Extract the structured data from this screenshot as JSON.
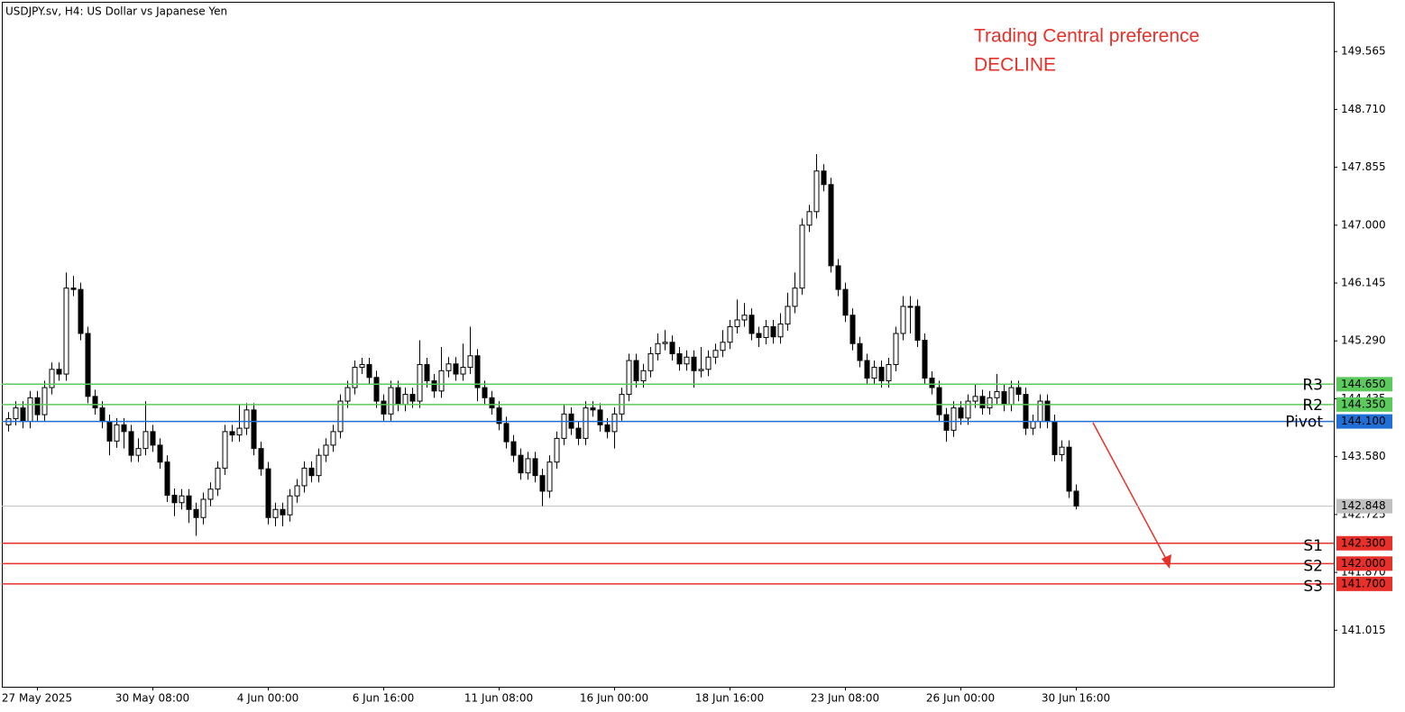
{
  "chart_data": {
    "type": "candlestick",
    "title": "USDJPY.sv, H4:  US Dollar vs Japanese Yen",
    "annotations": [
      "Trading Central preference",
      "DECLINE"
    ],
    "up_color": "#ffffff",
    "down_color": "#000000",
    "ylim": [
      140.18,
      150.3
    ],
    "yticks": [
      {
        "value": 141.015,
        "label": "141.015"
      },
      {
        "value": 141.87,
        "label": "141.870"
      },
      {
        "value": 142.725,
        "label": "142.725"
      },
      {
        "value": 143.58,
        "label": "143.580"
      },
      {
        "value": 144.435,
        "label": "144.435"
      },
      {
        "value": 145.29,
        "label": "145.290"
      },
      {
        "value": 146.145,
        "label": "146.145"
      },
      {
        "value": 147,
        "label": "147.000"
      },
      {
        "value": 147.855,
        "label": "147.855"
      },
      {
        "value": 148.71,
        "label": "148.710"
      },
      {
        "value": 149.565,
        "label": "149.565"
      }
    ],
    "current_price": 142.848,
    "levels": [
      {
        "name": "R3",
        "value": 144.65,
        "label": "144.650",
        "color": "#5cc95c"
      },
      {
        "name": "R2",
        "value": 144.35,
        "label": "144.350",
        "color": "#5cc95c"
      },
      {
        "name": "Pivot",
        "value": 144.1,
        "label": "144.100",
        "color": "#1f6fd6"
      },
      {
        "name": "S1",
        "value": 142.3,
        "label": "142.300",
        "color": "#e8302a"
      },
      {
        "name": "S2",
        "value": 142,
        "label": "142.000",
        "color": "#e8302a"
      },
      {
        "name": "S3",
        "value": 141.7,
        "label": "141.700",
        "color": "#e8302a"
      }
    ],
    "categories": [
      null,
      null,
      null,
      null,
      "27 May 2025",
      null,
      null,
      null,
      null,
      null,
      null,
      null,
      null,
      null,
      null,
      null,
      null,
      null,
      null,
      null,
      "30 May 08:00",
      null,
      null,
      null,
      null,
      null,
      null,
      null,
      null,
      null,
      null,
      null,
      null,
      null,
      null,
      null,
      "4 Jun 00:00",
      null,
      null,
      null,
      null,
      null,
      null,
      null,
      null,
      null,
      null,
      null,
      null,
      null,
      null,
      null,
      "6 Jun 16:00",
      null,
      null,
      null,
      null,
      null,
      null,
      null,
      null,
      null,
      null,
      null,
      null,
      null,
      null,
      null,
      "11 Jun 08:00",
      null,
      null,
      null,
      null,
      null,
      null,
      null,
      null,
      null,
      null,
      null,
      null,
      null,
      null,
      null,
      "16 Jun 00:00",
      null,
      null,
      null,
      null,
      null,
      null,
      null,
      null,
      null,
      null,
      null,
      null,
      null,
      null,
      null,
      "18 Jun 16:00",
      null,
      null,
      null,
      null,
      null,
      null,
      null,
      null,
      null,
      null,
      null,
      null,
      null,
      null,
      null,
      "23 Jun 08:00",
      null,
      null,
      null,
      null,
      null,
      null,
      null,
      null,
      null,
      null,
      null,
      null,
      null,
      null,
      null,
      "26 Jun 00:00",
      null,
      null,
      null,
      null,
      null,
      null,
      null,
      null,
      null,
      null,
      null,
      null,
      null,
      null,
      null,
      "30 Jun 16:00"
    ],
    "open": [
      144.05,
      144.14,
      144.3,
      144.1,
      144.45,
      144.2,
      144.6,
      144.87,
      144.8,
      146.07,
      146.05,
      145.4,
      144.47,
      144.3,
      144.1,
      143.81,
      144.05,
      143.95,
      143.6,
      143.7,
      143.95,
      143.75,
      143.5,
      143.01,
      142.9,
      143.0,
      142.8,
      142.68,
      142.95,
      143.1,
      143.41,
      143.95,
      143.9,
      144.0,
      144.27,
      143.7,
      143.4,
      142.68,
      142.8,
      142.72,
      143.0,
      143.15,
      143.41,
      143.3,
      143.6,
      143.75,
      143.95,
      144.4,
      144.6,
      144.9,
      144.94,
      144.75,
      144.4,
      144.21,
      144.6,
      144.35,
      144.5,
      144.4,
      144.94,
      144.7,
      144.55,
      144.85,
      144.95,
      144.8,
      144.9,
      145.07,
      144.6,
      144.45,
      144.3,
      144.07,
      143.8,
      143.6,
      143.34,
      143.55,
      143.3,
      143.07,
      143.5,
      143.85,
      144.21,
      144.0,
      143.85,
      144.3,
      144.27,
      144.05,
      143.95,
      144.21,
      144.5,
      145.0,
      144.7,
      144.85,
      145.1,
      145.25,
      145.27,
      145.1,
      144.95,
      145.05,
      144.85,
      144.87,
      145.05,
      145.15,
      145.27,
      145.5,
      145.6,
      145.67,
      145.4,
      145.34,
      145.5,
      145.35,
      145.54,
      145.8,
      146.07,
      147.0,
      147.2,
      147.8,
      147.6,
      146.4,
      146.05,
      145.67,
      145.25,
      145.0,
      144.74,
      144.9,
      144.7,
      144.94,
      145.4,
      145.8,
      145.8,
      145.3,
      144.74,
      144.6,
      144.2,
      143.97,
      144.3,
      144.15,
      144.4,
      144.47,
      144.3,
      144.45,
      144.54,
      144.35,
      144.6,
      144.5,
      144.0,
      144.1,
      144.4,
      144.1,
      143.61,
      143.72,
      143.07
    ],
    "high": [
      144.24,
      144.4,
      144.4,
      144.55,
      144.55,
      144.7,
      144.97,
      144.97,
      146.3,
      146.25,
      146.15,
      145.5,
      144.57,
      144.4,
      144.2,
      144.15,
      144.15,
      144.05,
      143.85,
      144.4,
      144.05,
      143.85,
      143.6,
      143.11,
      143.1,
      143.1,
      142.9,
      143.05,
      143.2,
      143.51,
      144.05,
      144.05,
      144.35,
      144.37,
      144.37,
      143.8,
      143.5,
      142.9,
      142.9,
      143.1,
      143.25,
      143.51,
      143.51,
      143.7,
      143.85,
      144.05,
      144.5,
      144.7,
      145.0,
      145.04,
      145.04,
      144.85,
      144.5,
      144.7,
      144.7,
      144.6,
      144.6,
      145.3,
      145.04,
      144.8,
      145.2,
      145.05,
      145.05,
      145.25,
      145.5,
      145.17,
      144.7,
      144.55,
      144.4,
      144.17,
      143.9,
      143.7,
      143.65,
      143.65,
      143.4,
      143.6,
      143.95,
      144.35,
      144.31,
      144.1,
      144.4,
      144.4,
      144.37,
      144.15,
      144.31,
      144.6,
      145.1,
      145.1,
      144.95,
      145.2,
      145.4,
      145.45,
      145.37,
      145.2,
      145.15,
      145.15,
      145.2,
      145.15,
      145.25,
      145.45,
      145.6,
      145.9,
      145.85,
      145.77,
      145.5,
      145.6,
      145.6,
      145.7,
      146.0,
      146.3,
      147.1,
      147.3,
      148.05,
      147.9,
      147.7,
      146.5,
      146.15,
      145.77,
      145.35,
      145.1,
      145.0,
      145.0,
      145.04,
      145.5,
      145.95,
      145.95,
      145.9,
      145.4,
      144.84,
      144.7,
      144.3,
      144.4,
      144.4,
      144.5,
      144.65,
      144.57,
      144.55,
      144.8,
      144.64,
      144.7,
      144.7,
      144.6,
      144.2,
      144.5,
      144.5,
      144.2,
      143.82,
      143.82,
      143.17
    ],
    "low": [
      143.95,
      144.04,
      144.0,
      144.0,
      144.1,
      144.1,
      144.5,
      144.7,
      144.7,
      145.95,
      145.3,
      144.37,
      144.2,
      144.0,
      143.6,
      143.71,
      143.7,
      143.5,
      143.5,
      143.6,
      143.65,
      143.4,
      142.91,
      142.7,
      142.8,
      142.6,
      142.41,
      142.58,
      142.85,
      143.0,
      143.31,
      143.8,
      143.8,
      143.9,
      143.6,
      143.3,
      142.58,
      142.55,
      142.55,
      142.62,
      142.9,
      143.05,
      143.2,
      143.2,
      143.5,
      143.65,
      143.85,
      144.3,
      144.5,
      144.8,
      144.65,
      144.3,
      144.11,
      144.11,
      144.25,
      144.25,
      144.3,
      144.3,
      144.6,
      144.45,
      144.45,
      144.75,
      144.7,
      144.7,
      144.8,
      144.4,
      144.35,
      144.2,
      143.97,
      143.7,
      143.5,
      143.24,
      143.24,
      143.2,
      142.85,
      142.97,
      143.4,
      143.75,
      143.9,
      143.75,
      143.75,
      144.17,
      143.95,
      143.85,
      143.7,
      144.11,
      144.4,
      144.6,
      144.6,
      144.75,
      145.0,
      145.15,
      145.0,
      144.85,
      144.85,
      144.6,
      144.75,
      144.77,
      144.95,
      145.05,
      145.17,
      145.4,
      145.5,
      145.3,
      145.2,
      145.24,
      145.25,
      145.25,
      145.44,
      145.7,
      145.97,
      146.9,
      147.1,
      147.5,
      146.3,
      145.95,
      145.57,
      145.15,
      144.9,
      144.64,
      144.64,
      144.6,
      144.6,
      144.84,
      145.3,
      145.4,
      145.2,
      144.64,
      144.5,
      144.1,
      143.8,
      143.87,
      144.05,
      144.05,
      144.3,
      144.2,
      144.2,
      144.35,
      144.25,
      144.25,
      144.4,
      143.9,
      143.9,
      144.0,
      144.0,
      143.51,
      143.51,
      142.97,
      142.8
    ],
    "close": [
      144.14,
      144.3,
      144.1,
      144.45,
      144.2,
      144.6,
      144.87,
      144.8,
      146.07,
      146.05,
      145.4,
      144.47,
      144.3,
      144.1,
      143.81,
      144.05,
      143.95,
      143.6,
      143.7,
      143.95,
      143.75,
      143.5,
      143.01,
      142.9,
      143.0,
      142.8,
      142.68,
      142.95,
      143.1,
      143.41,
      143.95,
      143.9,
      144.0,
      144.27,
      143.7,
      143.4,
      142.68,
      142.8,
      142.72,
      143.0,
      143.15,
      143.41,
      143.3,
      143.6,
      143.75,
      143.95,
      144.4,
      144.6,
      144.9,
      144.94,
      144.75,
      144.4,
      144.21,
      144.6,
      144.35,
      144.5,
      144.4,
      144.94,
      144.7,
      144.55,
      144.85,
      144.95,
      144.8,
      144.9,
      145.07,
      144.6,
      144.45,
      144.3,
      144.07,
      143.8,
      143.6,
      143.34,
      143.55,
      143.3,
      143.07,
      143.5,
      143.85,
      144.21,
      144.0,
      143.85,
      144.3,
      144.27,
      144.05,
      143.95,
      144.21,
      144.5,
      145.0,
      144.7,
      144.85,
      145.1,
      145.25,
      145.27,
      145.1,
      144.95,
      145.05,
      144.85,
      144.87,
      145.05,
      145.15,
      145.27,
      145.5,
      145.6,
      145.67,
      145.4,
      145.34,
      145.5,
      145.35,
      145.54,
      145.8,
      146.07,
      147.0,
      147.2,
      147.8,
      147.6,
      146.4,
      146.05,
      145.67,
      145.25,
      145.0,
      144.74,
      144.9,
      144.7,
      144.94,
      145.4,
      145.8,
      145.8,
      145.3,
      144.74,
      144.6,
      144.2,
      143.97,
      144.3,
      144.15,
      144.4,
      144.47,
      144.3,
      144.45,
      144.54,
      144.35,
      144.6,
      144.5,
      144.0,
      144.1,
      144.4,
      144.1,
      143.61,
      143.72,
      143.07,
      142.85
    ]
  }
}
